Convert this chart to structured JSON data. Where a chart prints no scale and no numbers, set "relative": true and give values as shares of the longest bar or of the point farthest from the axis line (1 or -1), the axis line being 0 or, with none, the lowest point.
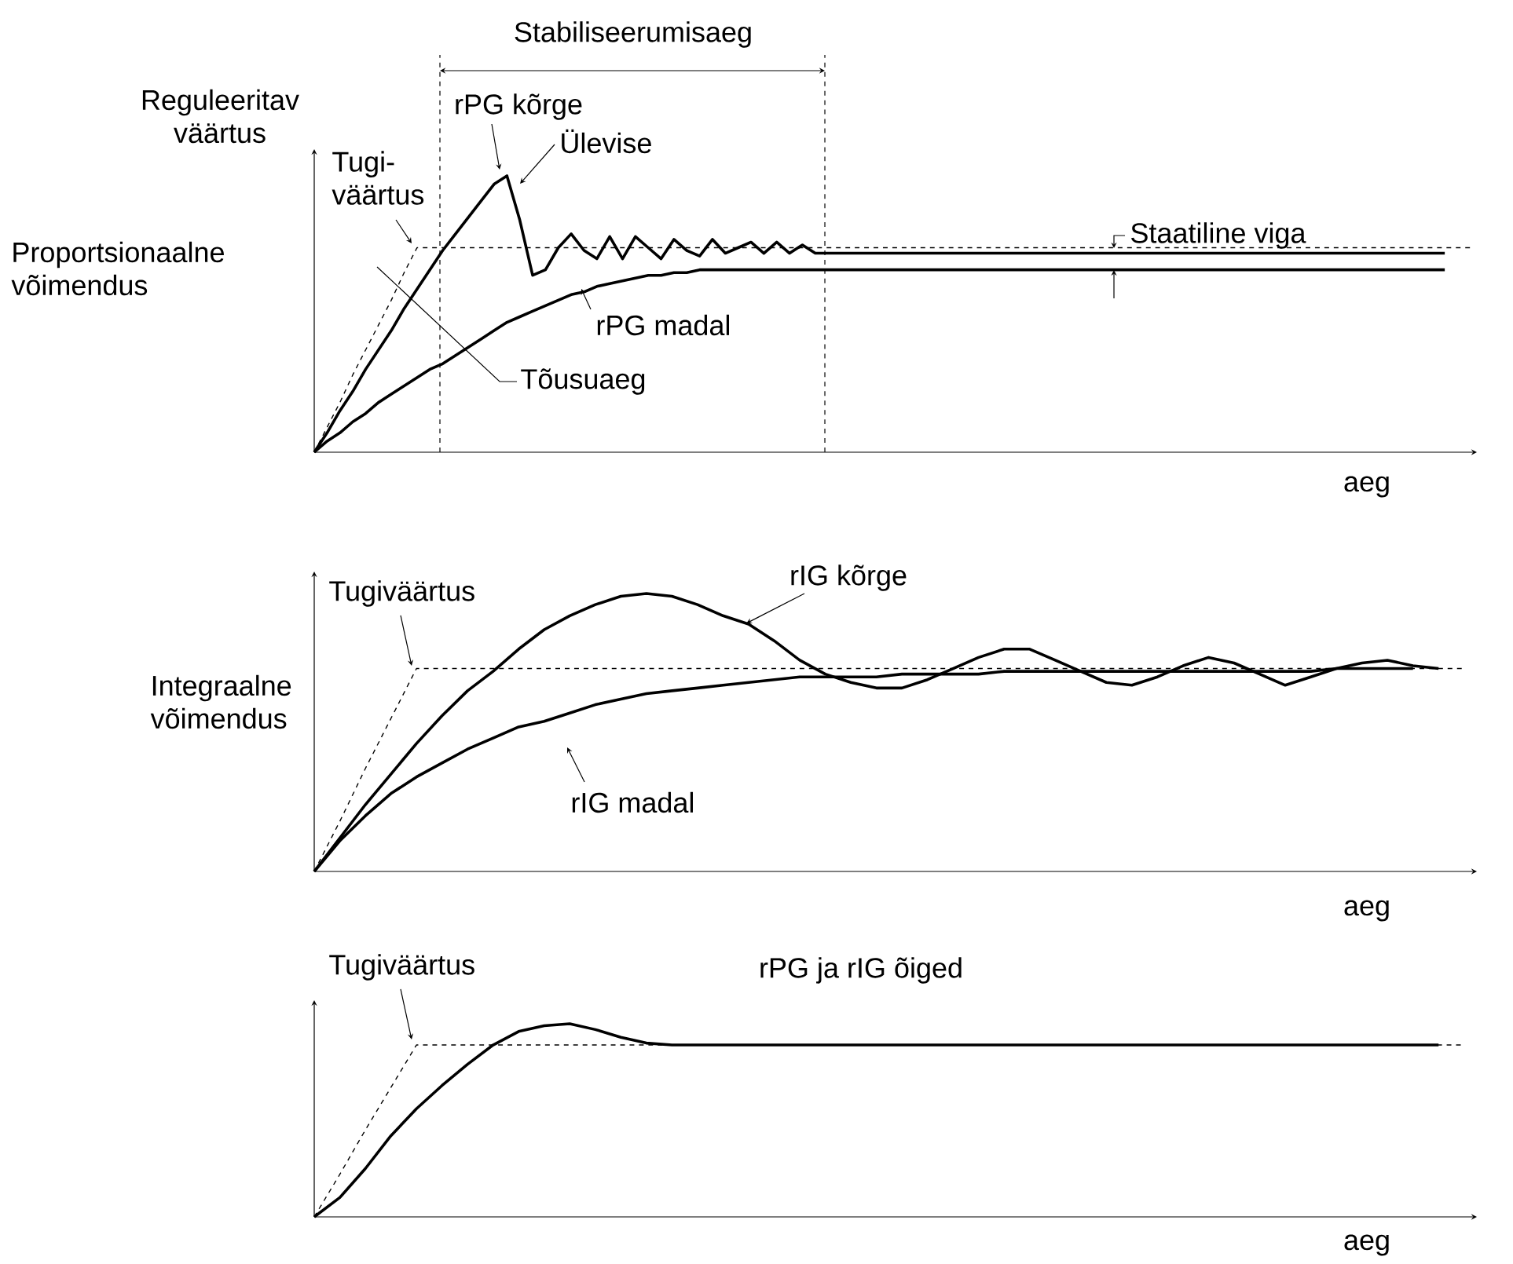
{
  "chart_data": [
    {
      "type": "line",
      "relative": true,
      "title": "Proportsionaalne võimendus",
      "ylabel": "Reguleeritav väärtus",
      "xlabel": "aeg",
      "categories": [
        null,
        null,
        null,
        null,
        null,
        null,
        null,
        null,
        null,
        null,
        null,
        null,
        null,
        null,
        null,
        null,
        null,
        null,
        null,
        null,
        null,
        null,
        null,
        null,
        null,
        null,
        null,
        null,
        null,
        null,
        null,
        null,
        null,
        null,
        null,
        null,
        null,
        null,
        null,
        null,
        null,
        null,
        null,
        null,
        null,
        null,
        null,
        null,
        null,
        null,
        null,
        null,
        null,
        null,
        null,
        null,
        null,
        null,
        null,
        null,
        null,
        null,
        null,
        null,
        null,
        null,
        null,
        null,
        null,
        null,
        null,
        null,
        null,
        null,
        null,
        null,
        null,
        null,
        null,
        null,
        null,
        null,
        null,
        null,
        null,
        null,
        null,
        null,
        null,
        null,
        null
      ],
      "series": [
        {
          "name": "Tugi-väärtus",
          "color": "#000000",
          "line_style": "dashed",
          "values": [
            0,
            0.09,
            0.18,
            0.28,
            0.37,
            0.46,
            0.55,
            0.65,
            0.74,
            0.74,
            0.74,
            0.74,
            0.74,
            0.74,
            0.74,
            0.74,
            0.74,
            0.74,
            0.74,
            0.74,
            0.74,
            0.74,
            0.74,
            0.74,
            0.74,
            0.74,
            0.74,
            0.74,
            0.74,
            0.74,
            0.74,
            0.74,
            0.74,
            0.74,
            0.74,
            0.74,
            0.74,
            0.74,
            0.74,
            0.74,
            0.74,
            0.74,
            0.74,
            0.74,
            0.74,
            0.74,
            0.74,
            0.74,
            0.74,
            0.74,
            0.74,
            0.74,
            0.74,
            0.74,
            0.74,
            0.74,
            0.74,
            0.74,
            0.74,
            0.74,
            0.74,
            0.74,
            0.74,
            0.74,
            0.74,
            0.74,
            0.74,
            0.74,
            0.74,
            0.74,
            0.74,
            0.74,
            0.74,
            0.74,
            0.74,
            0.74,
            0.74,
            0.74,
            0.74,
            0.74,
            0.74,
            0.74,
            0.74,
            0.74,
            0.74,
            0.74,
            0.74,
            0.74,
            0.74,
            0.74,
            0.74
          ]
        },
        {
          "name": "rPG kõrge",
          "color": "#000000",
          "values": [
            0,
            0.07,
            0.15,
            0.22,
            0.3,
            0.37,
            0.44,
            0.52,
            0.59,
            0.66,
            0.73,
            0.79,
            0.85,
            0.91,
            0.97,
            1,
            0.84,
            0.64,
            0.66,
            0.74,
            0.79,
            0.73,
            0.7,
            0.78,
            0.7,
            0.78,
            0.74,
            0.7,
            0.77,
            0.73,
            0.71,
            0.77,
            0.72,
            0.74,
            0.76,
            0.72,
            0.76,
            0.72,
            0.75,
            0.72,
            0.72,
            0.72,
            0.72,
            0.72,
            0.72,
            0.72,
            0.72,
            0.72,
            0.72,
            0.72,
            0.72,
            0.72,
            0.72,
            0.72,
            0.72,
            0.72,
            0.72,
            0.72,
            0.72,
            0.72,
            0.72,
            0.72,
            0.72,
            0.72,
            0.72,
            0.72,
            0.72,
            0.72,
            0.72,
            0.72,
            0.72,
            0.72,
            0.72,
            0.72,
            0.72,
            0.72,
            0.72,
            0.72,
            0.72,
            0.72,
            0.72,
            0.72,
            0.72,
            0.72,
            0.72,
            0.72,
            0.72,
            0.72,
            0.72,
            null,
            null
          ]
        },
        {
          "name": "rPG madal",
          "color": "#000000",
          "values": [
            0,
            0.04,
            0.07,
            0.11,
            0.14,
            0.18,
            0.21,
            0.24,
            0.27,
            0.3,
            0.32,
            0.35,
            0.38,
            0.41,
            0.44,
            0.47,
            0.49,
            0.51,
            0.53,
            0.55,
            0.57,
            0.58,
            0.6,
            0.61,
            0.62,
            0.63,
            0.64,
            0.64,
            0.65,
            0.65,
            0.66,
            0.66,
            0.66,
            0.66,
            0.66,
            0.66,
            0.66,
            0.66,
            0.66,
            0.66,
            0.66,
            0.66,
            0.66,
            0.66,
            0.66,
            0.66,
            0.66,
            0.66,
            0.66,
            0.66,
            0.66,
            0.66,
            0.66,
            0.66,
            0.66,
            0.66,
            0.66,
            0.66,
            0.66,
            0.66,
            0.66,
            0.66,
            0.66,
            0.66,
            0.66,
            0.66,
            0.66,
            0.66,
            0.66,
            0.66,
            0.66,
            0.66,
            0.66,
            0.66,
            0.66,
            0.66,
            0.66,
            0.66,
            0.66,
            0.66,
            0.66,
            0.66,
            0.66,
            0.66,
            0.66,
            0.66,
            0.66,
            0.66,
            0.66,
            null,
            null
          ]
        }
      ],
      "legend": "top left",
      "annotations": [
        "Ülevise",
        "Tõusuaeg",
        "Staatiline viga",
        "Stabiliseerumisaeg"
      ]
    },
    {
      "type": "line",
      "relative": true,
      "title": "Integraalne võimendus",
      "xlabel": "aeg",
      "legend": "top left",
      "categories": [
        null,
        null,
        null,
        null,
        null,
        null,
        null,
        null,
        null,
        null,
        null,
        null,
        null,
        null,
        null,
        null,
        null,
        null,
        null,
        null,
        null,
        null,
        null,
        null,
        null,
        null,
        null,
        null,
        null,
        null,
        null,
        null,
        null,
        null,
        null,
        null,
        null,
        null,
        null,
        null,
        null,
        null,
        null,
        null,
        null,
        null
      ],
      "series": [
        {
          "name": "Tugiväärtus",
          "color": "#000000",
          "line_style": "dashed",
          "values": [
            0,
            0.18,
            0.37,
            0.55,
            0.73,
            0.73,
            0.73,
            0.73,
            0.73,
            0.73,
            0.73,
            0.73,
            0.73,
            0.73,
            0.73,
            0.73,
            0.73,
            0.73,
            0.73,
            0.73,
            0.73,
            0.73,
            0.73,
            0.73,
            0.73,
            0.73,
            0.73,
            0.73,
            0.73,
            0.73,
            0.73,
            0.73,
            0.73,
            0.73,
            0.73,
            0.73,
            0.73,
            0.73,
            0.73,
            0.73,
            0.73,
            0.73,
            0.73,
            0.73,
            0.73,
            0.73
          ]
        },
        {
          "name": "rIG kõrge",
          "color": "#000000",
          "values": [
            0,
            0.12,
            0.24,
            0.35,
            0.46,
            0.56,
            0.65,
            0.72,
            0.8,
            0.87,
            0.92,
            0.96,
            0.99,
            1,
            0.99,
            0.96,
            0.92,
            0.89,
            0.83,
            0.76,
            0.71,
            0.68,
            0.66,
            0.66,
            0.69,
            0.73,
            0.77,
            0.8,
            0.8,
            0.76,
            0.72,
            0.68,
            0.67,
            0.7,
            0.74,
            0.77,
            0.75,
            0.71,
            0.67,
            0.7,
            0.73,
            0.75,
            0.76,
            0.74,
            0.73,
            null
          ]
        },
        {
          "name": "rIG madal",
          "color": "#000000",
          "values": [
            0,
            0.11,
            0.2,
            0.28,
            0.34,
            0.39,
            0.44,
            0.48,
            0.52,
            0.54,
            0.57,
            0.6,
            0.62,
            0.64,
            0.65,
            0.66,
            0.67,
            0.68,
            0.69,
            0.7,
            0.7,
            0.7,
            0.7,
            0.71,
            0.71,
            0.71,
            0.71,
            0.72,
            0.72,
            0.72,
            0.72,
            0.72,
            0.72,
            0.72,
            0.72,
            0.72,
            0.72,
            0.72,
            0.72,
            0.72,
            0.73,
            0.73,
            0.73,
            0.73,
            null,
            null
          ]
        }
      ]
    },
    {
      "type": "line",
      "relative": true,
      "title": "rPG ja rIG õiged",
      "xlabel": "aeg",
      "legend": "top left",
      "categories": [
        null,
        null,
        null,
        null,
        null,
        null,
        null,
        null,
        null,
        null,
        null,
        null,
        null,
        null,
        null,
        null,
        null,
        null,
        null,
        null,
        null,
        null,
        null,
        null,
        null,
        null,
        null,
        null,
        null,
        null,
        null,
        null,
        null,
        null,
        null,
        null,
        null,
        null,
        null,
        null,
        null,
        null,
        null,
        null,
        null,
        null
      ],
      "series": [
        {
          "name": "Tugiväärtus",
          "color": "#000000",
          "line_style": "dashed",
          "values": [
            0,
            0.22,
            0.45,
            0.67,
            0.89,
            0.89,
            0.89,
            0.89,
            0.89,
            0.89,
            0.89,
            0.89,
            0.89,
            0.89,
            0.89,
            0.89,
            0.89,
            0.89,
            0.89,
            0.89,
            0.89,
            0.89,
            0.89,
            0.89,
            0.89,
            0.89,
            0.89,
            0.89,
            0.89,
            0.89,
            0.89,
            0.89,
            0.89,
            0.89,
            0.89,
            0.89,
            0.89,
            0.89,
            0.89,
            0.89,
            0.89,
            0.89,
            0.89,
            0.89,
            0.89,
            0.89
          ]
        },
        {
          "color": "#000000",
          "values": [
            0,
            0.1,
            0.25,
            0.42,
            0.56,
            0.68,
            0.79,
            0.89,
            0.96,
            0.99,
            1,
            0.97,
            0.93,
            0.9,
            0.89,
            0.89,
            0.89,
            0.89,
            0.89,
            0.89,
            0.89,
            0.89,
            0.89,
            0.89,
            0.89,
            0.89,
            0.89,
            0.89,
            0.89,
            0.89,
            0.89,
            0.89,
            0.89,
            0.89,
            0.89,
            0.89,
            0.89,
            0.89,
            0.89,
            0.89,
            0.89,
            0.89,
            0.89,
            0.89,
            0.89,
            null
          ]
        }
      ]
    }
  ]
}
